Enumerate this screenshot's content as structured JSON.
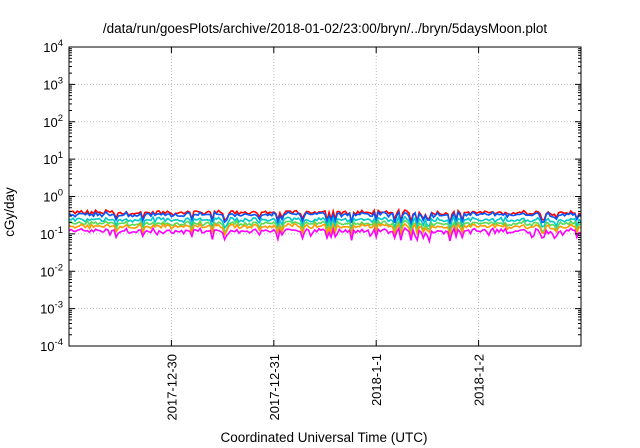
{
  "chart_data": {
    "type": "line",
    "title": "/data/run/goesPlots/archive/2018-01-02/23:00/bryn/../bryn/5daysMoon.plot",
    "xlabel": "Coordinated Universal Time (UTC)",
    "ylabel": "cGy/day",
    "yscale": "log",
    "ylim": [
      0.0001,
      10000
    ],
    "yticks": [
      {
        "value": 0.0001,
        "base": "10",
        "exp": "-4"
      },
      {
        "value": 0.001,
        "base": "10",
        "exp": "-3"
      },
      {
        "value": 0.01,
        "base": "10",
        "exp": "-2"
      },
      {
        "value": 0.1,
        "base": "10",
        "exp": "-1"
      },
      {
        "value": 1,
        "base": "10",
        "exp": "0"
      },
      {
        "value": 10,
        "base": "10",
        "exp": "1"
      },
      {
        "value": 100,
        "base": "10",
        "exp": "2"
      },
      {
        "value": 1000,
        "base": "10",
        "exp": "3"
      },
      {
        "value": 10000,
        "base": "10",
        "exp": "4"
      }
    ],
    "xlim": [
      "2017-12-29T00:00",
      "2018-01-03T00:00"
    ],
    "xticks": [
      {
        "date": "2017-12-30T00:00",
        "label": "2017-12-30"
      },
      {
        "date": "2017-12-31T00:00",
        "label": "2017-12-31"
      },
      {
        "date": "2018-01-01T00:00",
        "label": "2018-1-1"
      },
      {
        "date": "2018-01-02T00:00",
        "label": "2018-1-2"
      }
    ],
    "grid": true,
    "series": [
      {
        "color": "#ff0000",
        "level": 0.37
      },
      {
        "color": "#0055ff",
        "level": 0.33
      },
      {
        "color": "#00c8c8",
        "level": 0.24
      },
      {
        "color": "#55dd55",
        "level": 0.19
      },
      {
        "color": "#ff9900",
        "level": 0.16
      },
      {
        "color": "#ff00ff",
        "level": 0.12
      }
    ]
  }
}
